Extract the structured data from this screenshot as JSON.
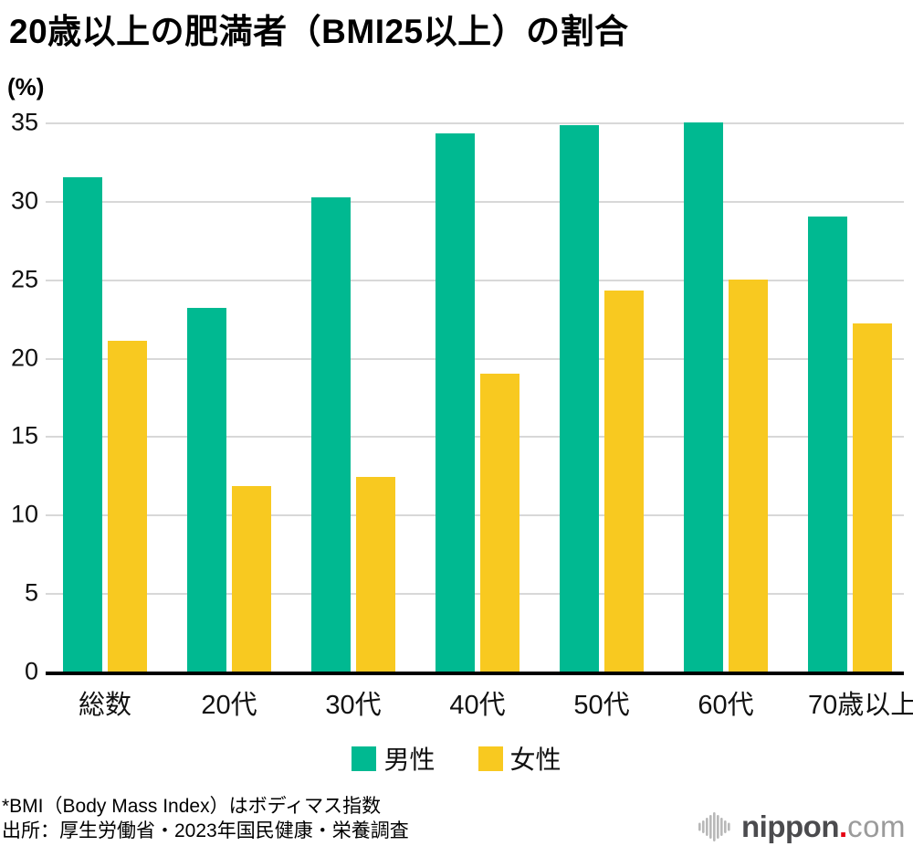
{
  "chart_data": {
    "type": "bar",
    "title": "20歳以上の肥満者（BMI25以上）の割合",
    "unit_label": "(%)",
    "xlabel": "",
    "ylabel": "%",
    "categories": [
      "総数",
      "20代",
      "30代",
      "40代",
      "50代",
      "60代",
      "70歳以上"
    ],
    "series": [
      {
        "name": "男性",
        "color": "#00b991",
        "values": [
          31.5,
          23.2,
          30.2,
          34.3,
          34.8,
          35.0,
          29.0
        ]
      },
      {
        "name": "女性",
        "color": "#f8c920",
        "values": [
          21.1,
          11.8,
          12.4,
          19.0,
          24.3,
          25.0,
          22.2
        ]
      }
    ],
    "ylim": [
      0,
      35
    ],
    "yticks": [
      0,
      5,
      10,
      15,
      20,
      25,
      30,
      35
    ],
    "grid": "horizontal",
    "legend_position": "bottom",
    "gridline_color": "#d8d8d8",
    "axis_color": "#000000"
  },
  "footnotes": [
    "*BMI（Body Mass Index）はボディマス指数",
    "出所：厚生労働省・2023年国民健康・栄養調査"
  ],
  "logo": {
    "brand": "nippon",
    "dot": ".",
    "tld": "com",
    "wave_color": "#b8b8b8",
    "dot_color": "#e60012"
  }
}
